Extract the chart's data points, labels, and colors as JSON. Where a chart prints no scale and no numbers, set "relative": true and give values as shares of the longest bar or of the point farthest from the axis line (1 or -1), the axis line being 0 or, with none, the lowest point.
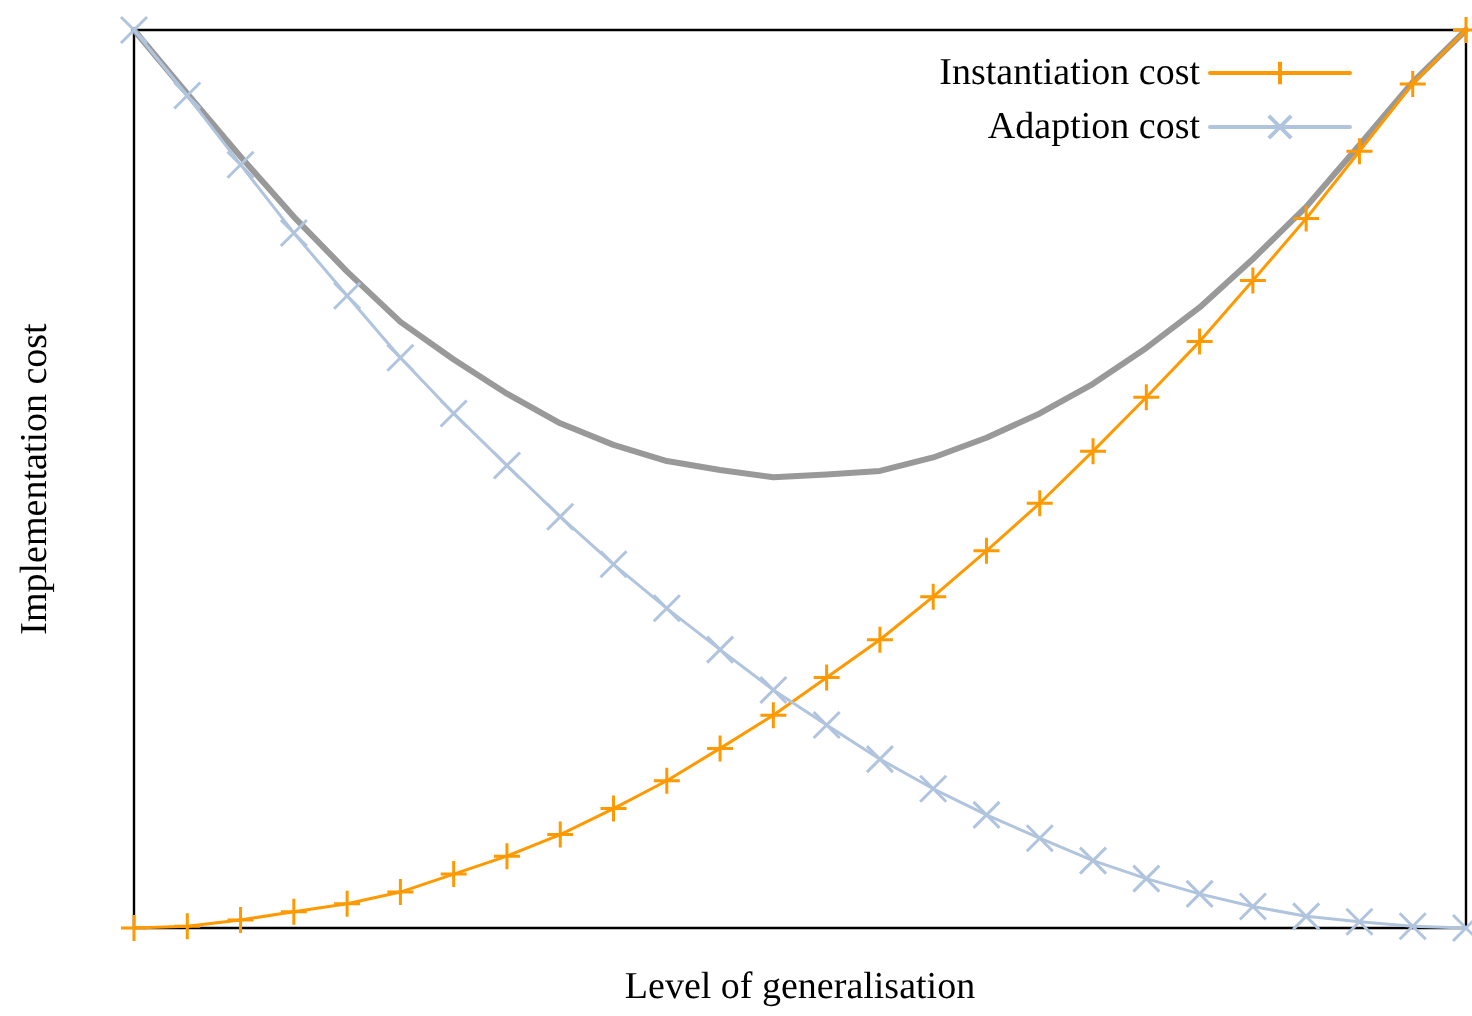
{
  "chart_data": {
    "type": "line",
    "relative": true,
    "xlabel": "Level of generalisation",
    "ylabel": "Implementation cost",
    "legend": "top right",
    "grid": false,
    "categories": [
      null,
      null,
      null,
      null,
      null,
      null,
      null,
      null,
      null,
      null,
      null,
      null,
      null,
      null,
      null,
      null,
      null,
      null,
      null,
      null,
      null,
      null,
      null,
      null,
      null,
      null
    ],
    "series": [
      {
        "name": "Instantiation cost",
        "color": "#ff9900",
        "marker": "cross",
        "values": [
          0,
          0.002,
          0.009,
          0.018,
          0.027,
          0.04,
          0.06,
          0.08,
          0.104,
          0.133,
          0.164,
          0.2,
          0.237,
          0.279,
          0.321,
          0.369,
          0.42,
          0.473,
          0.531,
          0.591,
          0.653,
          0.721,
          0.79,
          0.865,
          0.94,
          1
        ]
      },
      {
        "name": "Adaption cost",
        "color": "#b0c4de",
        "marker": "x",
        "values": [
          1,
          0.927,
          0.85,
          0.774,
          0.704,
          0.635,
          0.573,
          0.515,
          0.458,
          0.405,
          0.356,
          0.31,
          0.265,
          0.226,
          0.188,
          0.155,
          0.126,
          0.1,
          0.075,
          0.055,
          0.038,
          0.024,
          0.013,
          0.007,
          0.002,
          0
        ]
      },
      {
        "color": "#999999",
        "marker": "none",
        "values": [
          1,
          0.929,
          0.859,
          0.792,
          0.731,
          0.675,
          0.633,
          0.595,
          0.562,
          0.538,
          0.52,
          0.51,
          0.502,
          0.505,
          0.509,
          0.524,
          0.546,
          0.573,
          0.606,
          0.646,
          0.691,
          0.745,
          0.803,
          0.872,
          0.942,
          1
        ]
      }
    ]
  }
}
